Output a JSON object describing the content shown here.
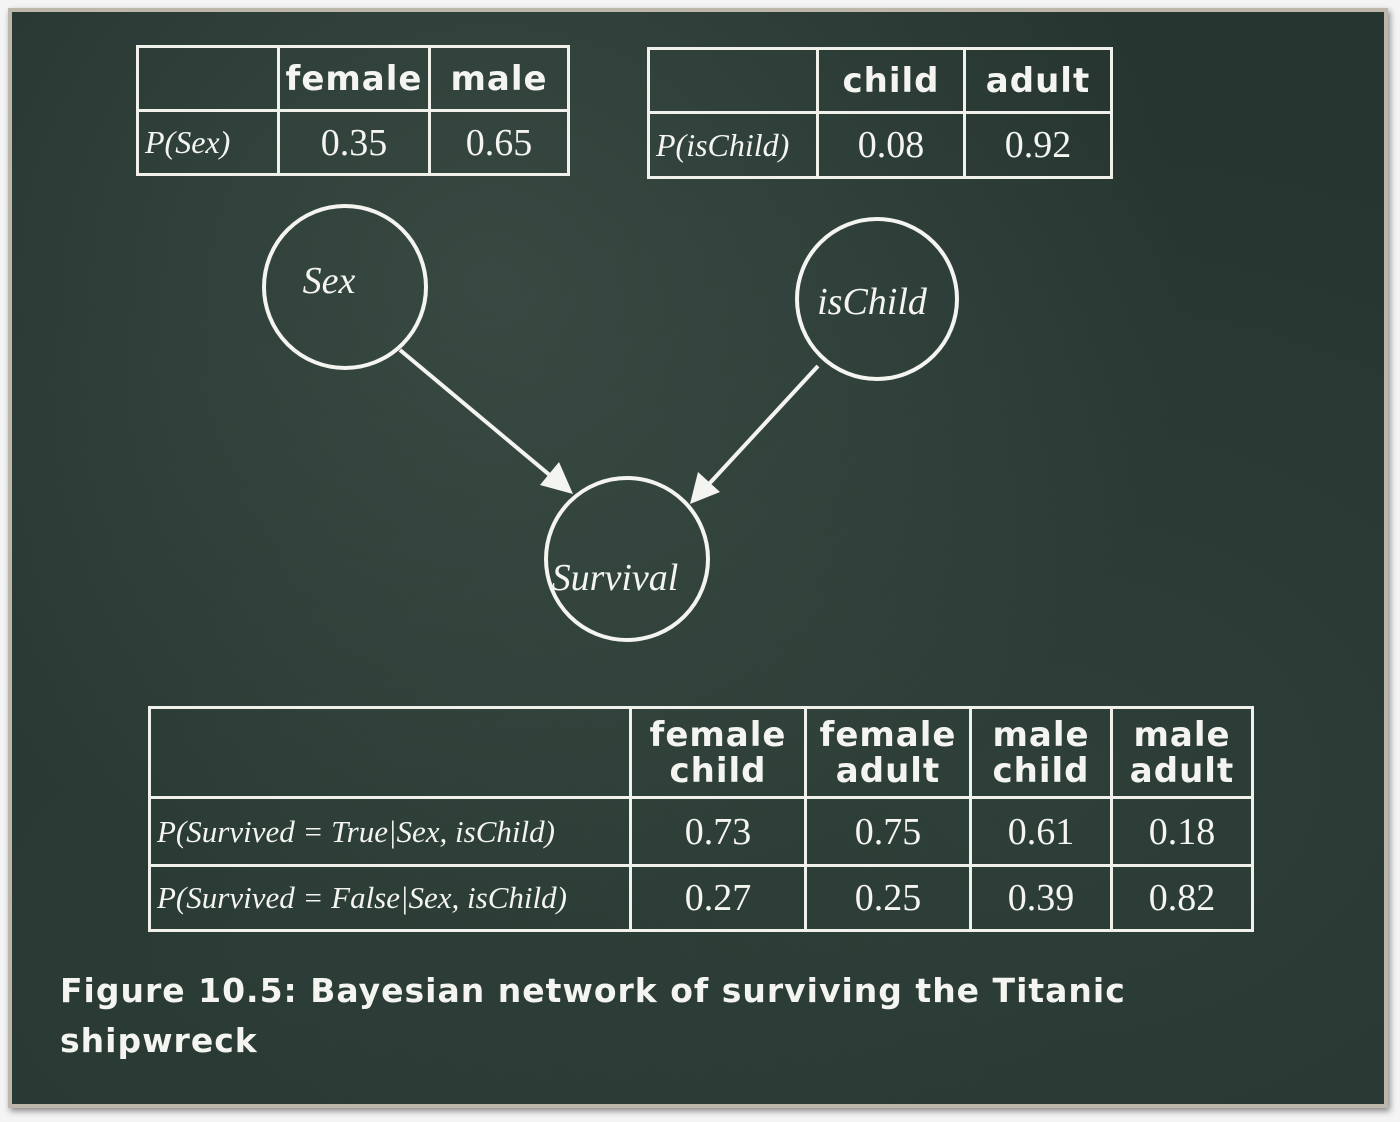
{
  "sex_table": {
    "headers": [
      "female",
      "male"
    ],
    "row_label": "P(Sex)",
    "values": [
      "0.35",
      "0.65"
    ]
  },
  "ischild_table": {
    "headers": [
      "child",
      "adult"
    ],
    "row_label": "P(isChild)",
    "values": [
      "0.08",
      "0.92"
    ]
  },
  "nodes": {
    "sex": "Sex",
    "ischild": "isChild",
    "survival": "Survival"
  },
  "survival_table": {
    "headers": [
      {
        "line1": "female",
        "line2": "child"
      },
      {
        "line1": "female",
        "line2": "adult"
      },
      {
        "line1": "male",
        "line2": "child"
      },
      {
        "line1": "male",
        "line2": "adult"
      }
    ],
    "rows": [
      {
        "label": "P(Survived = True|Sex, isChild)",
        "values": [
          "0.73",
          "0.75",
          "0.61",
          "0.18"
        ]
      },
      {
        "label": "P(Survived = False|Sex, isChild)",
        "values": [
          "0.27",
          "0.25",
          "0.39",
          "0.82"
        ]
      }
    ]
  },
  "caption": {
    "line1": "Figure 10.5: Bayesian network of surviving the Titanic",
    "line2": "shipwreck"
  }
}
